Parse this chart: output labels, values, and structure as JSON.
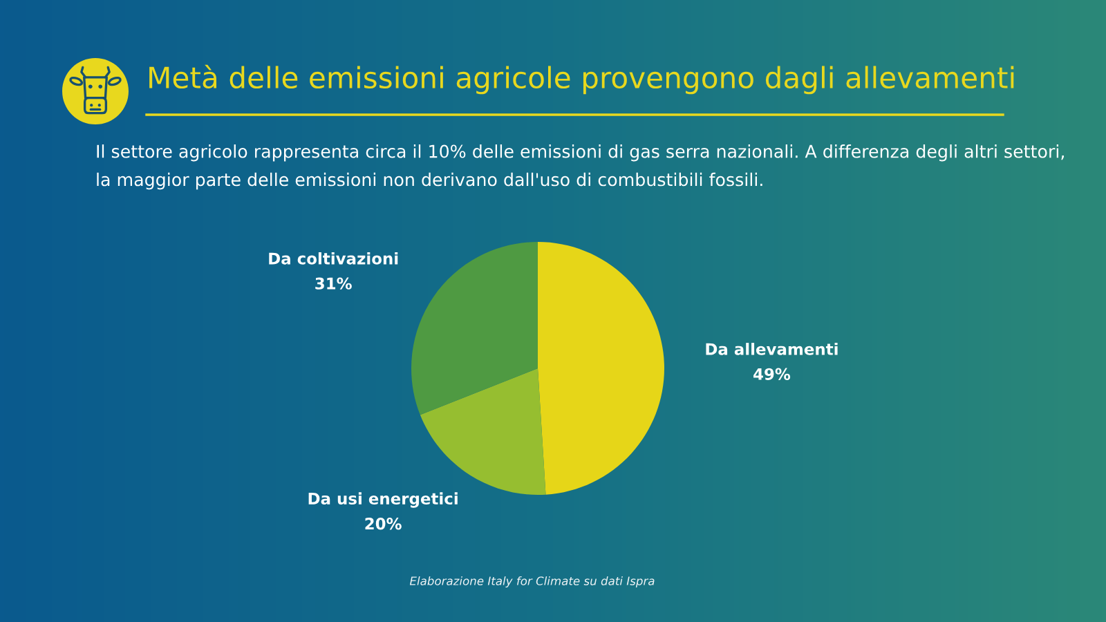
{
  "chart_data": {
    "type": "pie",
    "title": "Metà delle emissioni agricole provengono dagli allevamenti",
    "subtitle": "Il settore agricolo rappresenta circa il 10% delle emissioni di gas serra nazionali. A differenza degli altri settori, la maggior parte delle emissioni non derivano dall'uso di combustibili fossili.",
    "categories": [
      "Da allevamenti",
      "Da usi energetici",
      "Da coltivazioni"
    ],
    "values": [
      49,
      20,
      31
    ],
    "colors": [
      "#e6d618",
      "#96be30",
      "#4f9a42"
    ],
    "value_labels": [
      "49%",
      "20%",
      "31%"
    ],
    "annotations": [
      "Elaborazione Italy for Climate su dati Ispra"
    ]
  }
}
